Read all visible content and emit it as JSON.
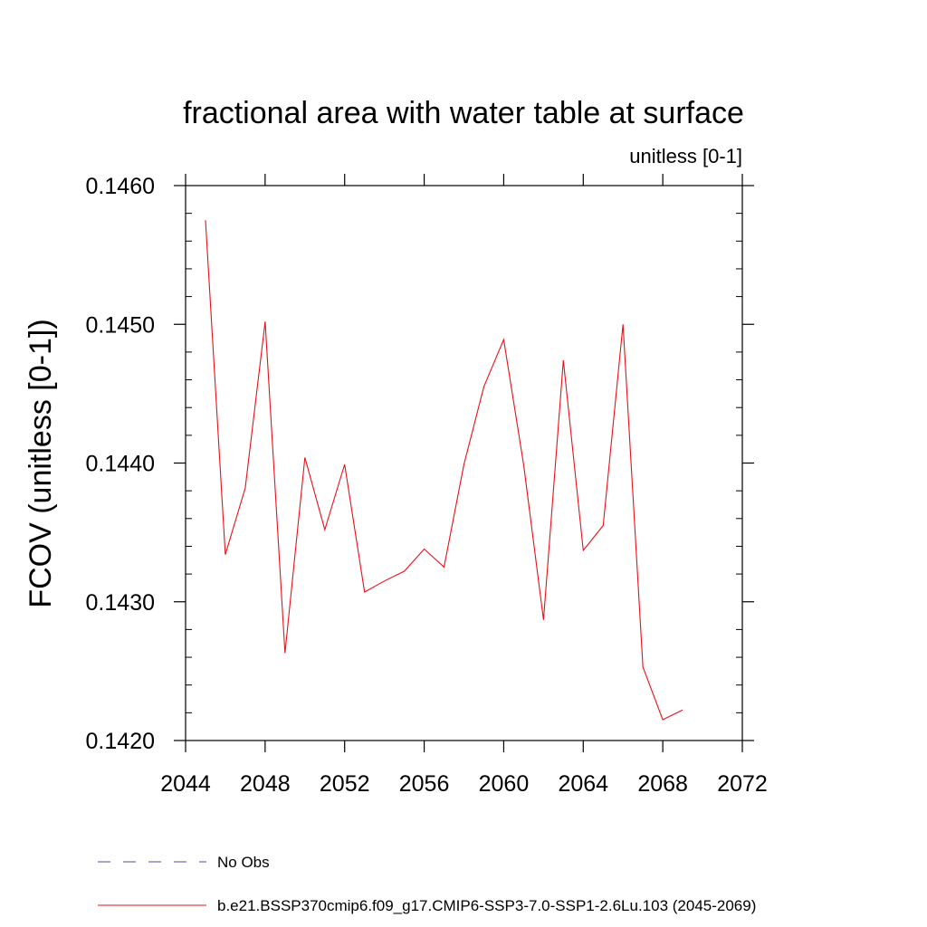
{
  "chart_data": {
    "type": "line",
    "title": "fractional area with water table at surface",
    "subtitle": "unitless [0-1]",
    "xlabel": "",
    "ylabel": "FCOV  (unitless [0-1])",
    "xlim": [
      2044,
      2072
    ],
    "ylim": [
      0.142,
      0.146
    ],
    "xticks": [
      2044,
      2048,
      2052,
      2056,
      2060,
      2064,
      2068,
      2072
    ],
    "xtick_labels": [
      "2044",
      "2048",
      "2052",
      "2056",
      "2060",
      "2064",
      "2068",
      "2072"
    ],
    "yticks": [
      0.142,
      0.143,
      0.144,
      0.145,
      0.146
    ],
    "ytick_labels": [
      "0.1420",
      "0.1430",
      "0.1440",
      "0.1450",
      "0.1460"
    ],
    "grid": false,
    "series": [
      {
        "name": "b.e21.BSSP370cmip6.f09_g17.CMIP6-SSP3-7.0-SSP1-2.6Lu.103 (2045-2069)",
        "color": "#e8101a",
        "style": "solid",
        "x": [
          2045,
          2046,
          2047,
          2048,
          2049,
          2050,
          2051,
          2052,
          2053,
          2054,
          2055,
          2056,
          2057,
          2058,
          2059,
          2060,
          2061,
          2062,
          2063,
          2064,
          2065,
          2066,
          2067,
          2068,
          2069
        ],
        "values": [
          0.14575,
          0.14334,
          0.14382,
          0.14502,
          0.14263,
          0.14404,
          0.14352,
          0.14399,
          0.14307,
          0.14315,
          0.14322,
          0.14338,
          0.14325,
          0.14399,
          0.14455,
          0.14489,
          0.14399,
          0.14287,
          0.14474,
          0.14337,
          0.14355,
          0.145,
          0.14253,
          0.14215,
          0.14222
        ]
      }
    ],
    "legend": [
      {
        "label": "No Obs",
        "color": "#5a4aa0",
        "style": "dashed"
      },
      {
        "label": "b.e21.BSSP370cmip6.f09_g17.CMIP6-SSP3-7.0-SSP1-2.6Lu.103 (2045-2069)",
        "color": "#e8101a",
        "style": "solid"
      }
    ]
  }
}
